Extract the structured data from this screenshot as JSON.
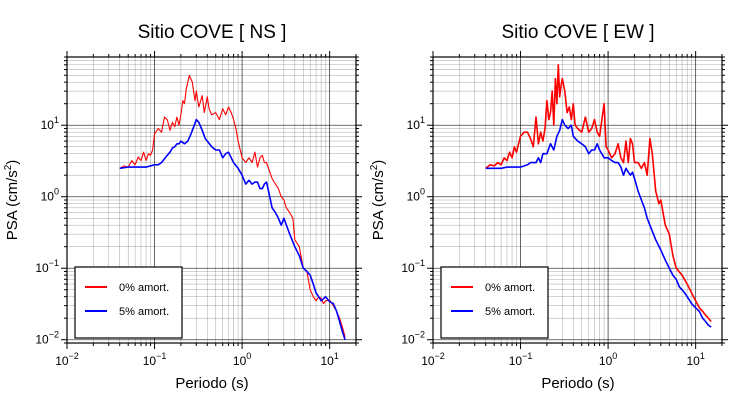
{
  "colors": {
    "red": "#ff0000",
    "blue": "#0000ff",
    "grid": "#000000"
  },
  "chart_data": [
    {
      "type": "line",
      "title": "Sitio COVE [ NS ]",
      "xlabel": "Periodo (s)",
      "ylabel_main": "PSA (cm/s",
      "ylabel_sup": "2",
      "ylabel_end": ")",
      "xscale": "log",
      "yscale": "log",
      "xlim": [
        0.01,
        20
      ],
      "ylim": [
        0.009,
        90
      ],
      "grid": true,
      "legend_position": "bottom-left",
      "xticks": [
        {
          "base": "10",
          "exp": "−2"
        },
        {
          "base": "10",
          "exp": "−1"
        },
        {
          "base": "10",
          "exp": "0"
        },
        {
          "base": "10",
          "exp": "1"
        }
      ],
      "yticks": [
        {
          "base": "10",
          "exp": "−2"
        },
        {
          "base": "10",
          "exp": "−1"
        },
        {
          "base": "10",
          "exp": "0"
        },
        {
          "base": "10",
          "exp": "1"
        }
      ],
      "series": [
        {
          "name": "0% amort.",
          "color": "#ff0000",
          "x": [
            0.04,
            0.045,
            0.05,
            0.055,
            0.06,
            0.065,
            0.07,
            0.075,
            0.08,
            0.085,
            0.09,
            0.095,
            0.1,
            0.11,
            0.12,
            0.13,
            0.14,
            0.15,
            0.16,
            0.17,
            0.18,
            0.19,
            0.2,
            0.21,
            0.22,
            0.23,
            0.25,
            0.27,
            0.29,
            0.3,
            0.32,
            0.35,
            0.37,
            0.4,
            0.42,
            0.45,
            0.5,
            0.55,
            0.6,
            0.65,
            0.7,
            0.75,
            0.8,
            0.85,
            0.9,
            1.0,
            1.1,
            1.2,
            1.3,
            1.4,
            1.5,
            1.6,
            1.7,
            1.8,
            1.9,
            2.0,
            2.2,
            2.4,
            2.6,
            2.8,
            3.0,
            3.2,
            3.5,
            3.8,
            4.0,
            4.5,
            5.0,
            5.5,
            6.0,
            6.5,
            7.0,
            7.5,
            8.0,
            8.5,
            9.0,
            10,
            11,
            12,
            13,
            14,
            15
          ],
          "y": [
            2.5,
            2.7,
            2.6,
            3.2,
            2.8,
            3.6,
            3.2,
            4.2,
            3.2,
            4.0,
            3.8,
            4.5,
            7.5,
            9.0,
            8.0,
            13,
            12,
            8.5,
            11,
            9.5,
            13,
            10,
            14,
            22,
            20,
            32,
            50,
            40,
            22,
            30,
            18,
            26,
            15,
            25,
            17,
            14,
            15,
            12,
            17,
            14,
            18,
            15,
            12,
            9,
            6,
            3.5,
            3.0,
            3.5,
            3.0,
            4.2,
            2.6,
            3.5,
            3.8,
            3.0,
            3.0,
            2.5,
            1.8,
            1.5,
            1.3,
            1.0,
            0.9,
            0.7,
            0.6,
            0.5,
            0.25,
            0.2,
            0.1,
            0.09,
            0.05,
            0.04,
            0.035,
            0.04,
            0.038,
            0.032,
            0.035,
            0.036,
            0.03,
            0.025,
            0.02,
            0.015,
            0.011
          ]
        },
        {
          "name": "5% amort.",
          "color": "#0000ff",
          "x": [
            0.04,
            0.05,
            0.06,
            0.07,
            0.08,
            0.09,
            0.1,
            0.11,
            0.12,
            0.13,
            0.14,
            0.15,
            0.16,
            0.17,
            0.18,
            0.19,
            0.2,
            0.22,
            0.24,
            0.26,
            0.28,
            0.3,
            0.32,
            0.35,
            0.38,
            0.4,
            0.45,
            0.5,
            0.55,
            0.6,
            0.65,
            0.7,
            0.75,
            0.8,
            0.9,
            1.0,
            1.1,
            1.2,
            1.3,
            1.4,
            1.5,
            1.6,
            1.7,
            1.8,
            1.9,
            2.0,
            2.2,
            2.4,
            2.6,
            2.8,
            3.0,
            3.5,
            4.0,
            4.5,
            5.0,
            5.5,
            6.0,
            6.5,
            7.0,
            7.5,
            8.0,
            9.0,
            10,
            11,
            12,
            13,
            14,
            15
          ],
          "y": [
            2.5,
            2.6,
            2.6,
            2.6,
            2.6,
            2.7,
            2.8,
            2.8,
            3.0,
            3.4,
            3.8,
            4.2,
            4.8,
            5.0,
            5.5,
            5.5,
            6.0,
            5.5,
            6.0,
            7.5,
            9.5,
            12,
            11,
            8.5,
            6.5,
            6.0,
            5.0,
            4.5,
            4.5,
            3.5,
            4.0,
            4.2,
            3.5,
            3.0,
            2.5,
            2.0,
            1.5,
            1.7,
            1.5,
            1.6,
            1.6,
            1.3,
            1.3,
            1.5,
            1.6,
            1.2,
            0.7,
            0.6,
            0.5,
            0.4,
            0.5,
            0.3,
            0.2,
            0.15,
            0.1,
            0.09,
            0.08,
            0.06,
            0.045,
            0.04,
            0.035,
            0.04,
            0.034,
            0.032,
            0.025,
            0.018,
            0.013,
            0.01
          ]
        }
      ]
    },
    {
      "type": "line",
      "title": "Sitio COVE [ EW ]",
      "xlabel": "Periodo (s)",
      "ylabel_main": "PSA (cm/s",
      "ylabel_sup": "2",
      "ylabel_end": ")",
      "xscale": "log",
      "yscale": "log",
      "xlim": [
        0.01,
        20
      ],
      "ylim": [
        0.009,
        90
      ],
      "grid": true,
      "legend_position": "bottom-left",
      "xticks": [
        {
          "base": "10",
          "exp": "−2"
        },
        {
          "base": "10",
          "exp": "−1"
        },
        {
          "base": "10",
          "exp": "0"
        },
        {
          "base": "10",
          "exp": "1"
        }
      ],
      "yticks": [
        {
          "base": "10",
          "exp": "−2"
        },
        {
          "base": "10",
          "exp": "−1"
        },
        {
          "base": "10",
          "exp": "0"
        },
        {
          "base": "10",
          "exp": "1"
        }
      ],
      "series": [
        {
          "name": "0% amort.",
          "color": "#ff0000",
          "x": [
            0.04,
            0.045,
            0.05,
            0.055,
            0.06,
            0.065,
            0.07,
            0.075,
            0.08,
            0.085,
            0.09,
            0.095,
            0.1,
            0.11,
            0.12,
            0.13,
            0.14,
            0.15,
            0.16,
            0.17,
            0.18,
            0.19,
            0.2,
            0.21,
            0.22,
            0.23,
            0.24,
            0.25,
            0.26,
            0.27,
            0.28,
            0.29,
            0.3,
            0.32,
            0.34,
            0.36,
            0.38,
            0.4,
            0.42,
            0.45,
            0.5,
            0.55,
            0.6,
            0.65,
            0.7,
            0.75,
            0.8,
            0.85,
            0.9,
            0.95,
            1.0,
            1.1,
            1.2,
            1.3,
            1.4,
            1.5,
            1.6,
            1.7,
            1.8,
            1.9,
            2.0,
            2.2,
            2.4,
            2.6,
            2.8,
            3.0,
            3.2,
            3.5,
            3.8,
            4.0,
            4.5,
            5.0,
            5.5,
            6.0,
            7.0,
            8.0,
            9.0,
            10,
            11,
            12,
            13,
            14,
            15
          ],
          "y": [
            2.5,
            2.8,
            2.7,
            3.0,
            2.8,
            3.5,
            3.2,
            4.2,
            3.5,
            5.0,
            4.2,
            5.5,
            7.0,
            8.0,
            8.0,
            6.5,
            5.0,
            13,
            5.5,
            8.0,
            6.0,
            9.0,
            22,
            12,
            15,
            30,
            10,
            45,
            20,
            70,
            25,
            35,
            45,
            30,
            15,
            18,
            12,
            20,
            10,
            9,
            8.0,
            13,
            8.0,
            9.0,
            12,
            8.0,
            7.0,
            12,
            20,
            5.0,
            4.5,
            3.5,
            4.0,
            5.5,
            3.5,
            3.0,
            6.0,
            3.0,
            6.5,
            5.5,
            3.0,
            3.0,
            2.5,
            3.0,
            2.0,
            6.5,
            4.0,
            1.2,
            0.8,
            0.9,
            0.4,
            0.3,
            0.15,
            0.1,
            0.08,
            0.06,
            0.045,
            0.035,
            0.028,
            0.025,
            0.022,
            0.02,
            0.018
          ]
        },
        {
          "name": "5% amort.",
          "color": "#0000ff",
          "x": [
            0.04,
            0.05,
            0.06,
            0.07,
            0.08,
            0.09,
            0.1,
            0.11,
            0.12,
            0.13,
            0.14,
            0.15,
            0.16,
            0.17,
            0.18,
            0.2,
            0.22,
            0.24,
            0.26,
            0.28,
            0.3,
            0.32,
            0.35,
            0.38,
            0.4,
            0.45,
            0.5,
            0.55,
            0.6,
            0.65,
            0.7,
            0.75,
            0.8,
            0.9,
            1.0,
            1.1,
            1.2,
            1.3,
            1.4,
            1.5,
            1.6,
            1.7,
            1.8,
            1.9,
            2.0,
            2.2,
            2.4,
            2.6,
            2.8,
            3.0,
            3.5,
            4.0,
            4.5,
            5.0,
            5.5,
            6.0,
            6.5,
            7.0,
            7.5,
            8.0,
            9.0,
            10,
            11,
            12,
            13,
            14,
            15
          ],
          "y": [
            2.5,
            2.5,
            2.5,
            2.6,
            2.6,
            2.6,
            2.6,
            2.7,
            2.8,
            3.0,
            3.0,
            3.0,
            3.5,
            3.0,
            4.0,
            4.0,
            5.5,
            4.5,
            7.0,
            8.5,
            12,
            10,
            9.0,
            10,
            7.0,
            6.0,
            5.5,
            5.0,
            4.0,
            4.5,
            4.5,
            5.5,
            4.5,
            3.5,
            3.5,
            3.2,
            3.0,
            3.0,
            2.6,
            2.0,
            2.5,
            2.2,
            2.0,
            2.2,
            1.8,
            1.2,
            0.9,
            0.7,
            0.5,
            0.4,
            0.25,
            0.18,
            0.13,
            0.1,
            0.08,
            0.07,
            0.055,
            0.05,
            0.045,
            0.04,
            0.032,
            0.028,
            0.025,
            0.02,
            0.018,
            0.016,
            0.015
          ]
        }
      ]
    }
  ]
}
